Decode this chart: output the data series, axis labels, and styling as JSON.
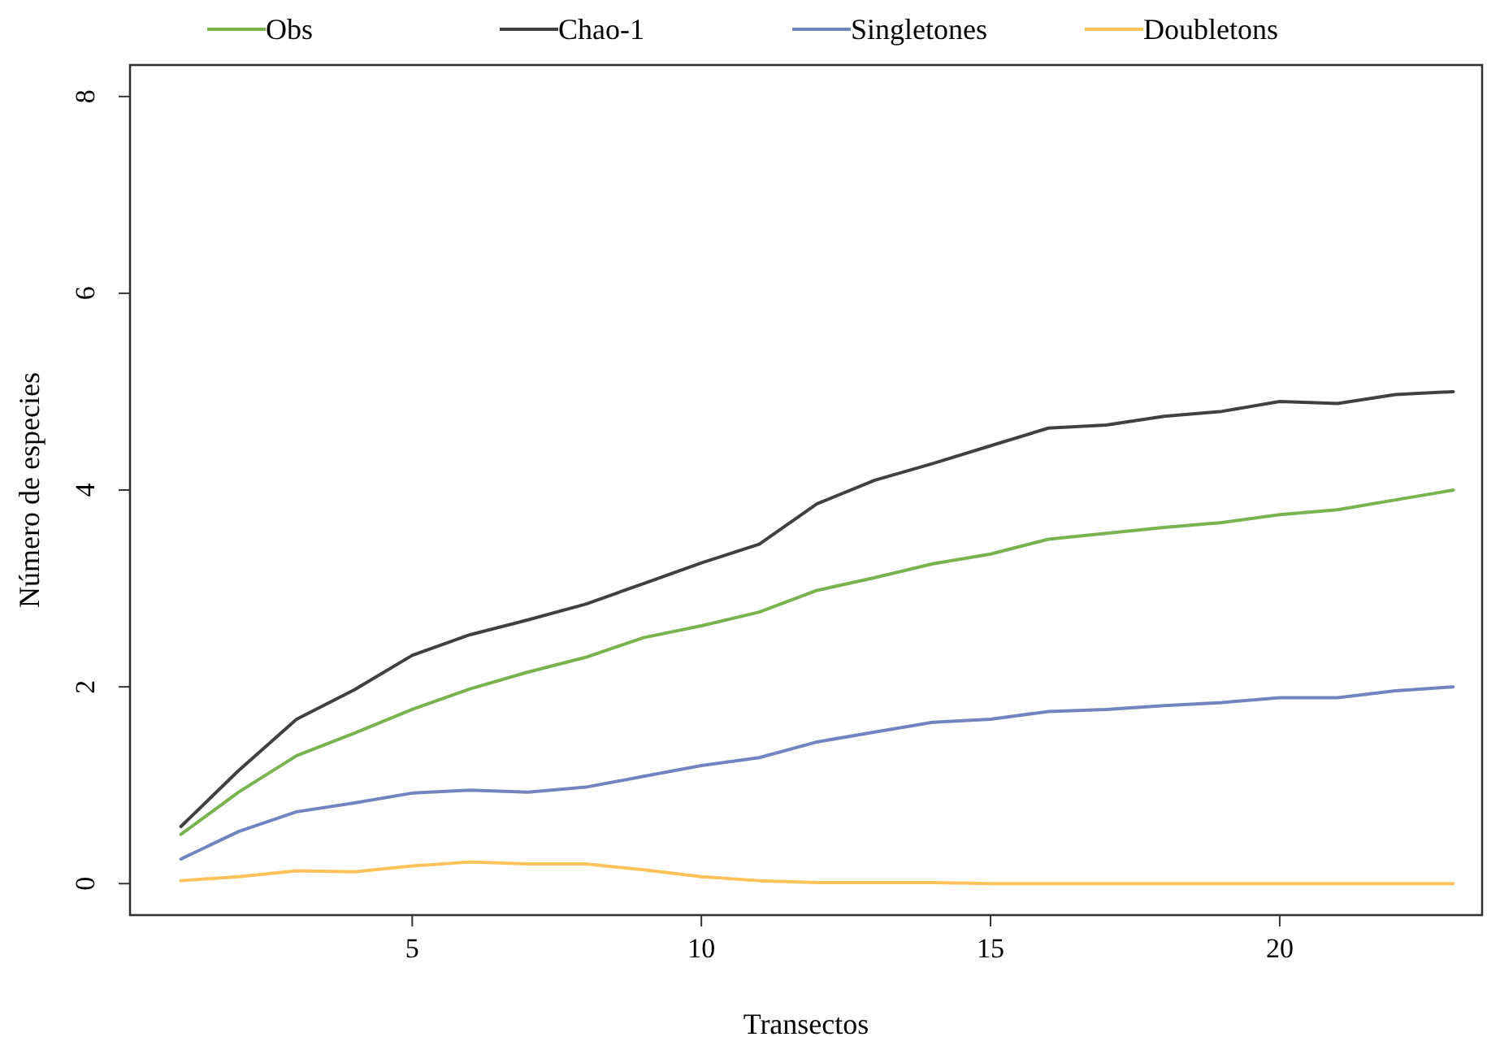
{
  "chart_data": {
    "type": "line",
    "xlabel": "Transectos",
    "ylabel": "Número de especies",
    "x": [
      1,
      2,
      3,
      4,
      5,
      6,
      7,
      8,
      9,
      10,
      11,
      12,
      13,
      14,
      15,
      16,
      17,
      18,
      19,
      20,
      21,
      22,
      23
    ],
    "xlim": [
      0.12,
      23.5
    ],
    "xticks": [
      5,
      10,
      15,
      20
    ],
    "ylim": [
      -0.32,
      8.32
    ],
    "yticks": [
      0,
      2,
      4,
      6,
      8
    ],
    "legend": "top",
    "grid": false,
    "marker": "none",
    "line_style": "solid",
    "series": [
      {
        "name": "Obs",
        "color": "#78b34f",
        "values": [
          0.5,
          0.93,
          1.3,
          1.53,
          1.77,
          1.98,
          2.15,
          2.3,
          2.5,
          2.62,
          2.76,
          2.98,
          3.11,
          3.25,
          3.35,
          3.5,
          3.56,
          3.62,
          3.67,
          3.75,
          3.8,
          3.9,
          4.0
        ]
      },
      {
        "name": "Chao-1",
        "color": "#404040",
        "values": [
          0.58,
          1.15,
          1.67,
          1.97,
          2.32,
          2.53,
          2.68,
          2.84,
          3.05,
          3.26,
          3.45,
          3.86,
          4.1,
          4.27,
          4.45,
          4.63,
          4.66,
          4.75,
          4.8,
          4.9,
          4.88,
          4.97,
          5.0
        ]
      },
      {
        "name": "Singletones",
        "color": "#7383c0",
        "values": [
          0.25,
          0.53,
          0.73,
          0.82,
          0.92,
          0.95,
          0.93,
          0.98,
          1.09,
          1.2,
          1.28,
          1.44,
          1.54,
          1.64,
          1.67,
          1.75,
          1.77,
          1.81,
          1.84,
          1.89,
          1.89,
          1.96,
          2.0
        ]
      },
      {
        "name": "Doubletons",
        "color": "#fdc35a",
        "values": [
          0.03,
          0.07,
          0.13,
          0.12,
          0.18,
          0.22,
          0.2,
          0.2,
          0.14,
          0.07,
          0.03,
          0.01,
          0.01,
          0.01,
          0,
          0,
          0,
          0,
          0,
          0,
          0,
          0,
          0
        ]
      }
    ]
  }
}
